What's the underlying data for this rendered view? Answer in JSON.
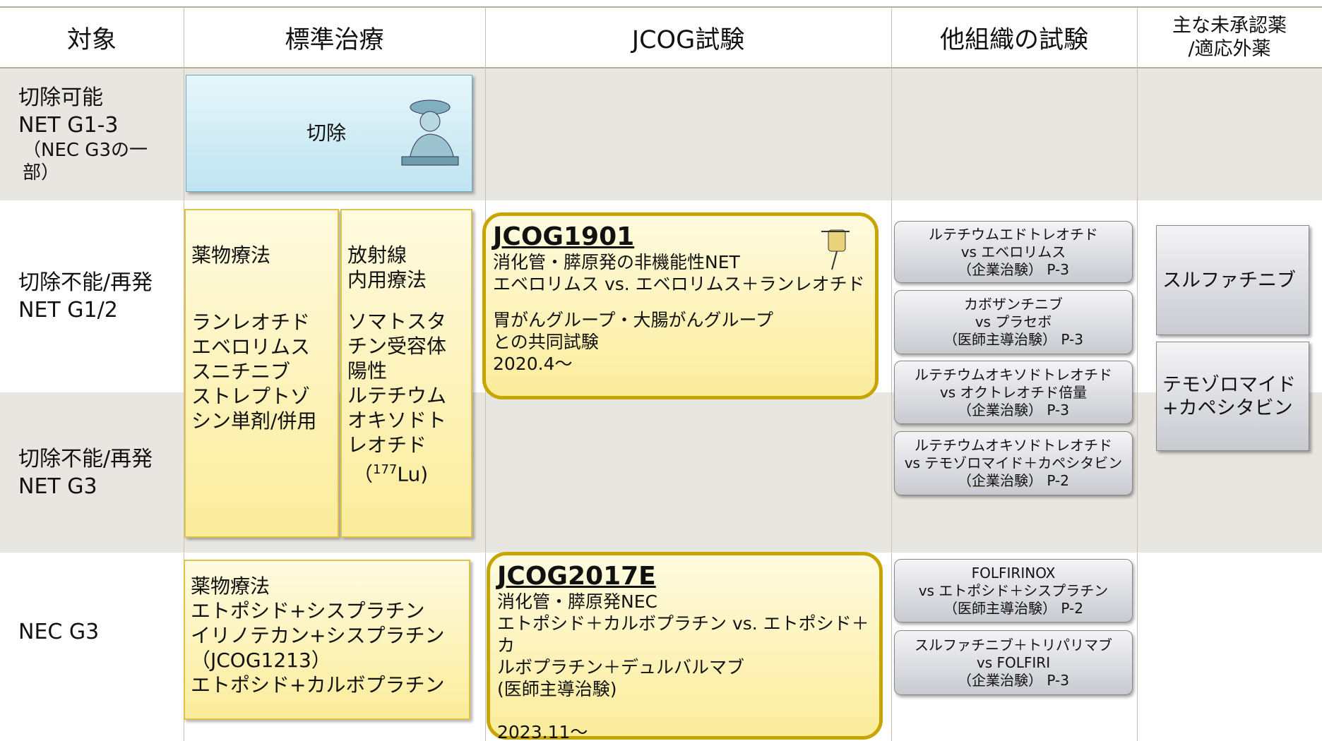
{
  "header": {
    "target": "対象",
    "standard": "標準治療",
    "jcog": "JCOG試験",
    "other": "他組織の試験",
    "unapproved": [
      "主な未承認薬",
      "/適応外薬"
    ]
  },
  "rows": [
    {
      "label": [
        "切除可能",
        "NET G1-3"
      ],
      "note": [
        "（NEC G3の一",
        "部）"
      ]
    },
    {
      "label": [
        "切除不能/再発",
        "NET G1/2"
      ]
    },
    {
      "label": [
        "切除不能/再発",
        "NET G3"
      ]
    },
    {
      "label": [
        "NEC G3"
      ]
    }
  ],
  "standard": {
    "resection": "切除",
    "drug_therapy": {
      "title": "薬物療法",
      "items": [
        "ランレオチド",
        "エベロリムス",
        "スニチニブ",
        "ストレプトゾ",
        "シン単剤/併用"
      ]
    },
    "radiation": {
      "title": [
        "放射線",
        "内用療法"
      ],
      "items": [
        "ソマトスタ",
        "チン受容体",
        "陽性",
        "ルテチウム",
        "オキソドト",
        "レオチド"
      ],
      "isotope": {
        "open": "（",
        "sup": "177",
        "text": "Lu)"
      }
    },
    "nec_drug_therapy": [
      "薬物療法",
      "エトポシド+シスプラチン",
      "イリノテカン+シスプラチン",
      "（JCOG1213）",
      "エトポシド+カルボプラチン"
    ]
  },
  "jcog_trials": [
    {
      "id": "JCOG1901",
      "lines": [
        "消化管・膵原発の非機能性NET",
        "エベロリムス vs. エベロリムス＋ランレオチド"
      ],
      "note": [
        "胃がんグループ・大腸がんグループ",
        "との共同試験"
      ],
      "date": "2020.4～"
    },
    {
      "id": "JCOG2017E",
      "lines": [
        "消化管・膵原発NEC",
        "エトポシド＋カルボプラチン vs. エトポシド＋カ",
        "ルボプラチン＋デュルバルマブ",
        "(医師主導治験)"
      ],
      "date": "2023.11～"
    }
  ],
  "other_trials": {
    "net": [
      [
        "ルテチウムエドトレオチド",
        "vs エベロリムス",
        "（企業治験） P-3"
      ],
      [
        "カボザンチニブ",
        "vs プラセボ",
        "（医師主導治験） P-3"
      ],
      [
        "ルテチウムオキソドトレオチド",
        "vs オクトレオチド倍量",
        "（企業治験） P-3"
      ],
      [
        "ルテチウムオキソドトレオチド",
        "vs テモゾロマイド＋カペシタビン",
        "（企業治験） P-2"
      ]
    ],
    "nec": [
      [
        "FOLFIRINOX",
        "vs エトポシド＋シスプラチン",
        "（医師主導治験） P-2"
      ],
      [
        "スルファチニブ＋トリパリマブ",
        "vs FOLFIRI",
        "（企業治験） P-3"
      ]
    ]
  },
  "unapproved": [
    [
      "スルファチニブ"
    ],
    [
      "テモゾロマイド",
      "+カペシタビン"
    ]
  ]
}
